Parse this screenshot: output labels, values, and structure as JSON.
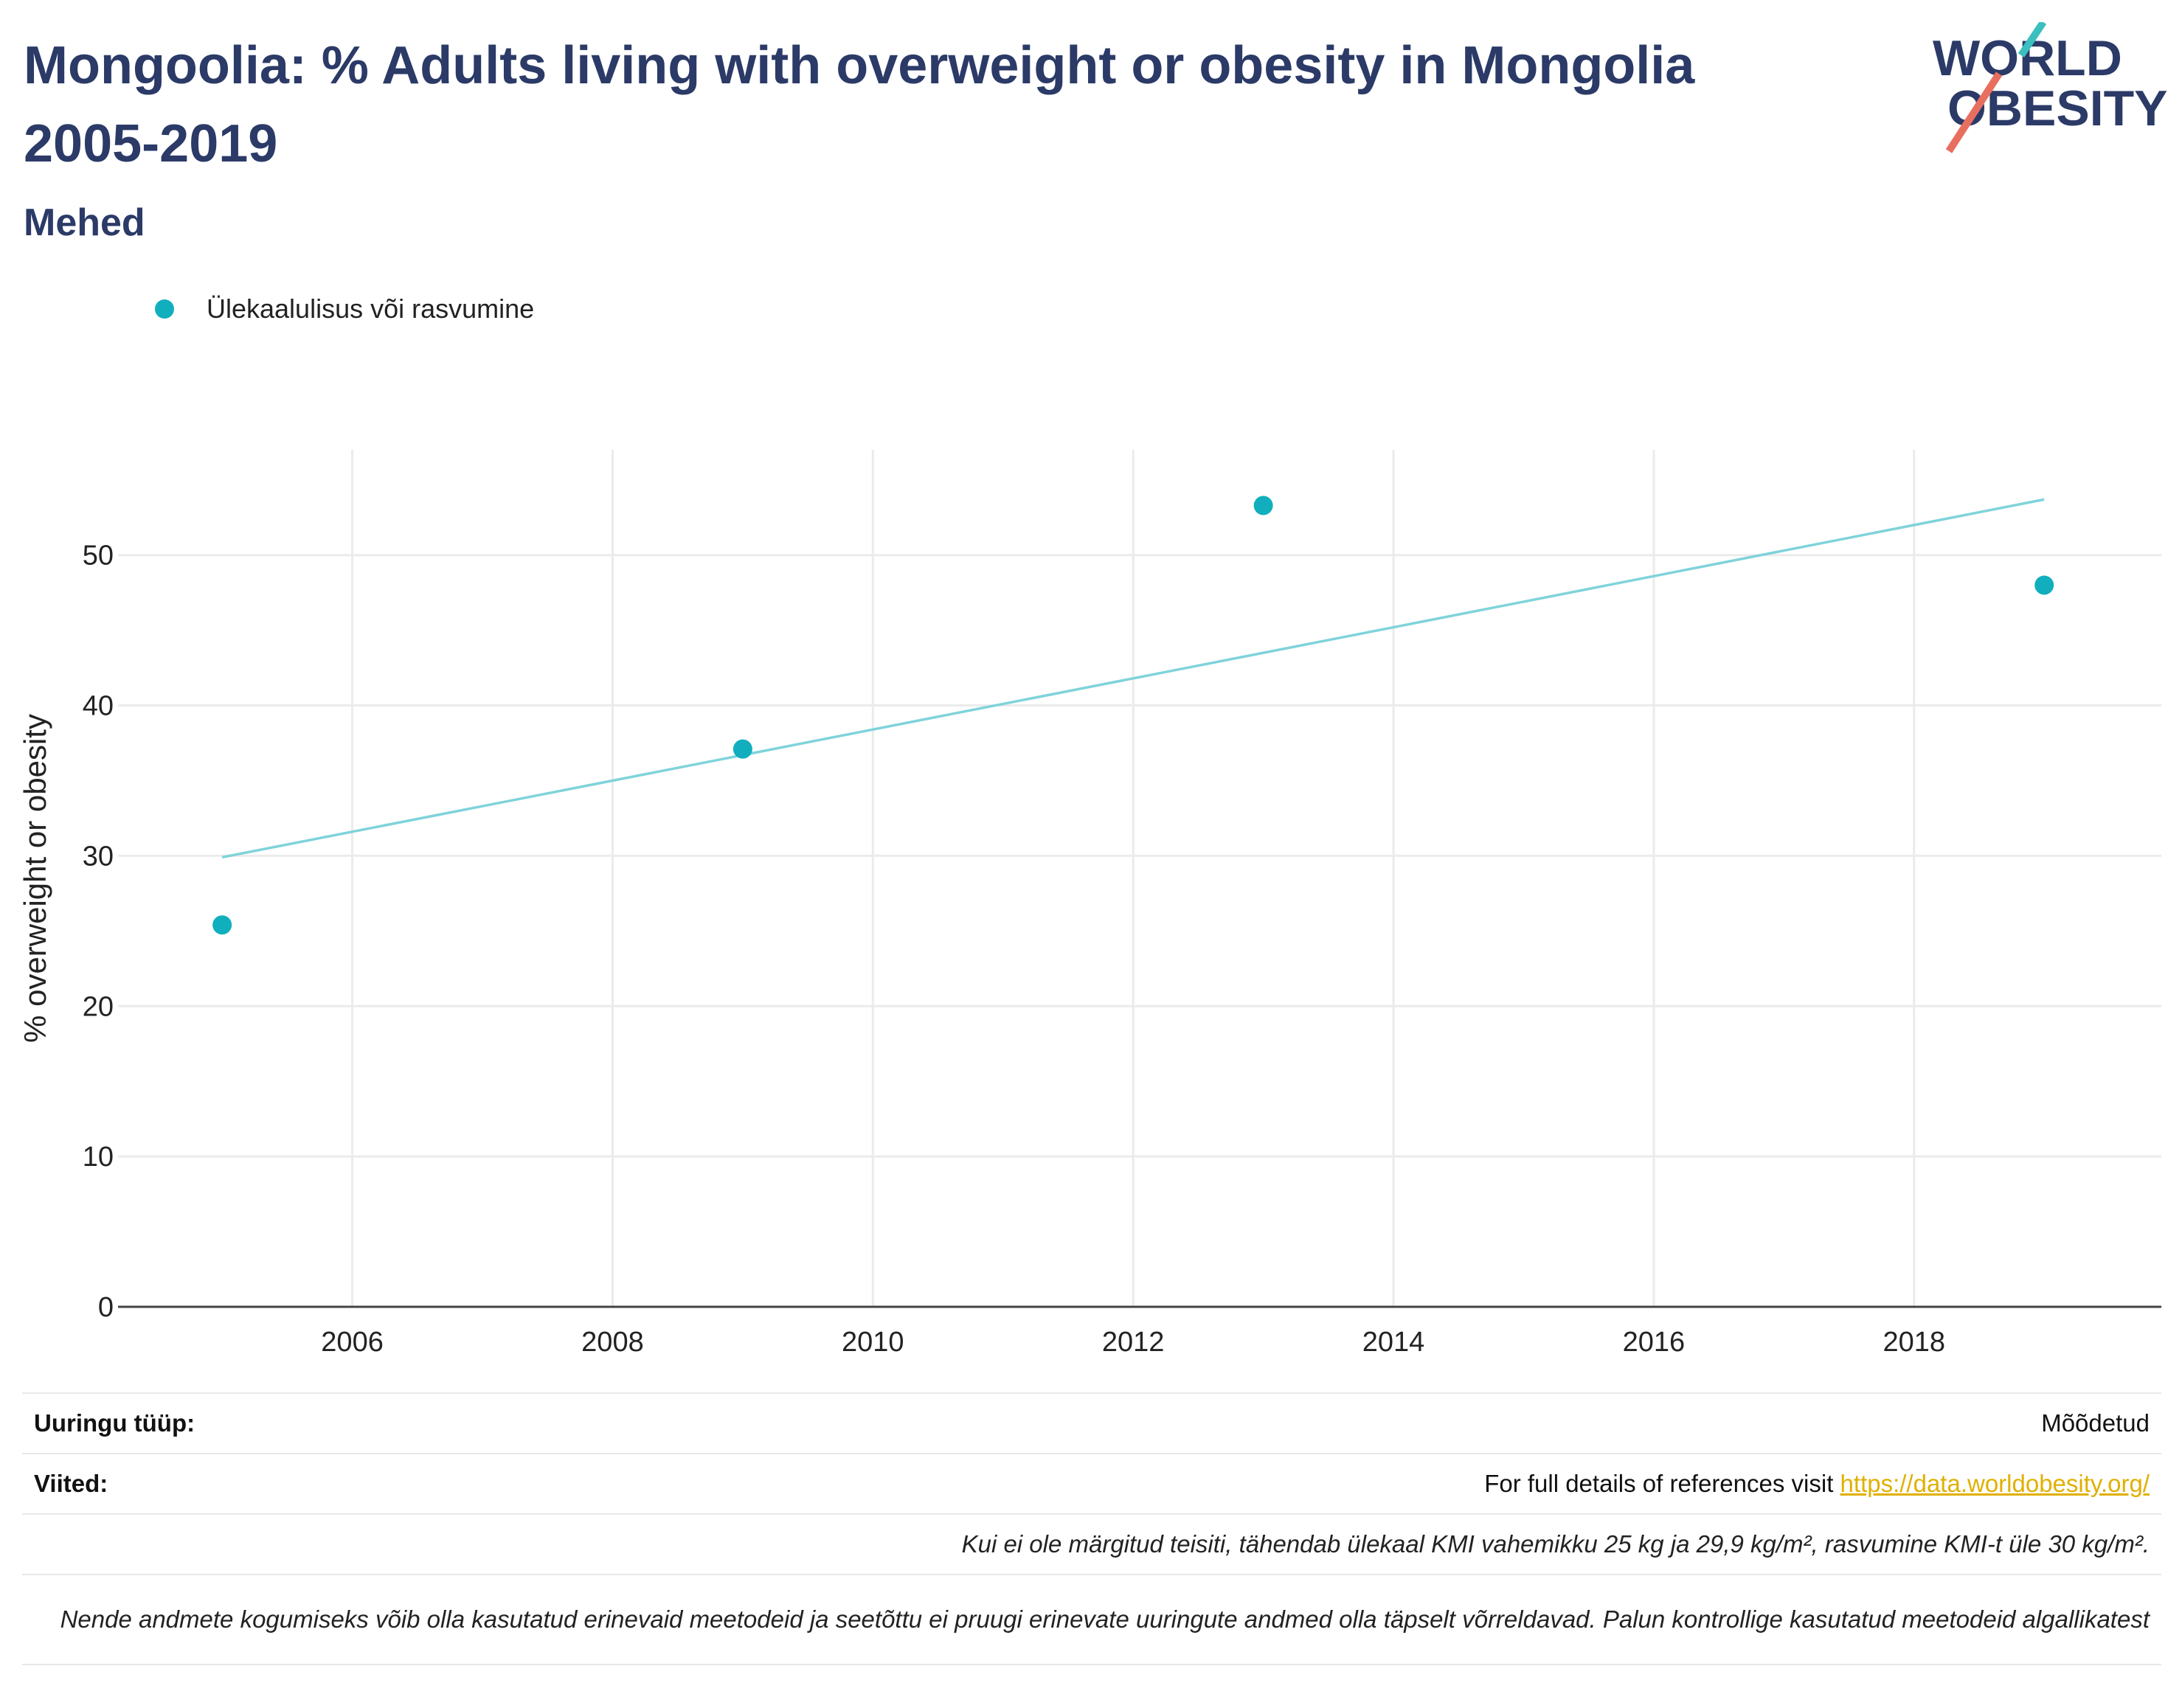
{
  "header": {
    "title": "Mongoolia: % Adults living with overweight or obesity in Mongolia 2005-2019",
    "subtitle": "Mehed",
    "logo_line1": "WORLD",
    "logo_line2": "OBESITY"
  },
  "colors": {
    "title": "#2b3a67",
    "series": "#11afbd",
    "trend": "#7fd3da",
    "logo_teal": "#3bbfbf",
    "logo_coral": "#e86f5f",
    "link": "#e0b000"
  },
  "chart_data": {
    "type": "scatter",
    "series": [
      {
        "name": "Ülekaalulisus või rasvumine",
        "x": [
          2005,
          2009,
          2013,
          2019
        ],
        "y": [
          25.4,
          37.1,
          53.3,
          48.0
        ]
      }
    ],
    "trendline": {
      "x": [
        2005,
        2019
      ],
      "y": [
        29.9,
        53.7
      ]
    },
    "ylabel": "% overweight or obesity",
    "xlabel": "",
    "xlim": [
      2004.2,
      2019.9
    ],
    "ylim": [
      0,
      57
    ],
    "xticks": [
      2006,
      2008,
      2010,
      2012,
      2014,
      2016,
      2018
    ],
    "yticks": [
      0,
      10,
      20,
      30,
      40,
      50
    ],
    "grid": true,
    "legend_position": "top-left"
  },
  "footer": {
    "survey_type_label": "Uuringu tüüp:",
    "survey_type_value": "Mõõdetud",
    "references_label": "Viited:",
    "references_text": "For full details of references visit ",
    "references_link": "https://data.worldobesity.org/",
    "note1": "Kui ei ole märgitud teisiti, tähendab ülekaal KMI vahemikku 25 kg ja 29,9 kg/m², rasvumine KMI-t üle 30 kg/m².",
    "note2": "Nende andmete kogumiseks võib olla kasutatud erinevaid meetodeid ja seetõttu ei pruugi erinevate uuringute andmed olla täpselt võrreldavad. Palun kontrollige kasutatud meetodeid algallikatest"
  }
}
